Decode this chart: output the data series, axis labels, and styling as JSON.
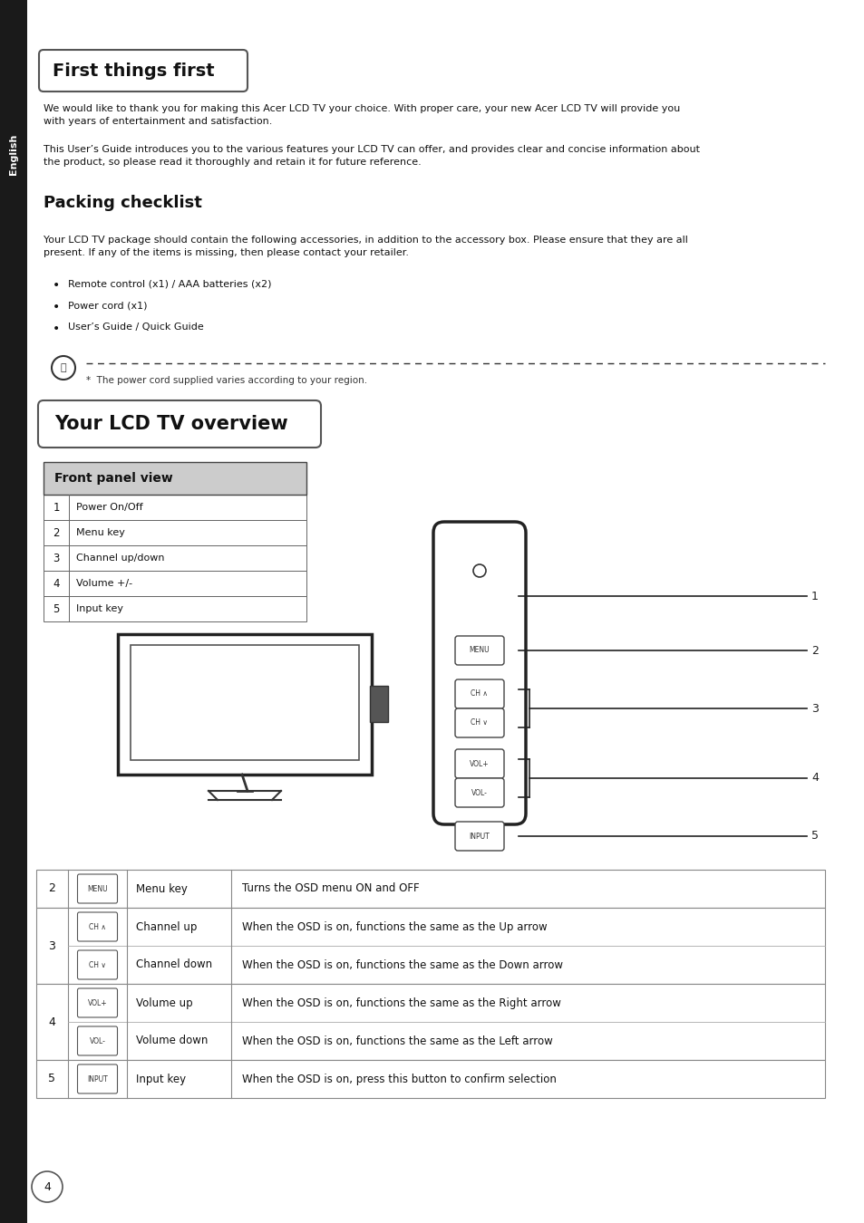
{
  "bg_color": "#ffffff",
  "page_num": "4",
  "sidebar_color": "#1a1a1a",
  "sidebar_text": "English",
  "section1_title": "First things first",
  "intro_text1": "We would like to thank you for making this Acer LCD TV your choice. With proper care, your new Acer LCD TV will provide you\nwith years of entertainment and satisfaction.",
  "intro_text2": "This User’s Guide introduces you to the various features your LCD TV can offer, and provides clear and concise information about\nthe product, so please read it thoroughly and retain it for future reference.",
  "section2_title": "Packing checklist",
  "checklist_intro": "Your LCD TV package should contain the following accessories, in addition to the accessory box. Please ensure that they are all\npresent. If any of the items is missing, then please contact your retailer.",
  "checklist_items": [
    "Remote control (x1) / AAA batteries (x2)",
    "Power cord (x1)",
    "User’s Guide / Quick Guide"
  ],
  "note_text": "*  The power cord supplied varies according to your region.",
  "section3_title": "Your LCD TV overview",
  "front_panel_title": "Front panel view",
  "front_panel_rows": [
    [
      "1",
      "Power On/Off"
    ],
    [
      "2",
      "Menu key"
    ],
    [
      "3",
      "Channel up/down"
    ],
    [
      "4",
      "Volume +/-"
    ],
    [
      "5",
      "Input key"
    ]
  ],
  "detail_rows": [
    {
      "num": "2",
      "icon": "MENU",
      "key": "Menu key",
      "desc": "Turns the OSD menu ON and OFF",
      "span": 1
    },
    {
      "num": "3",
      "icon": "CH ∧",
      "key": "Channel up",
      "desc": "When the OSD is on, functions the same as the Up arrow",
      "span": 2
    },
    {
      "num": "3",
      "icon": "CH ∨",
      "key": "Channel down",
      "desc": "When the OSD is on, functions the same as the Down arrow",
      "span": 0
    },
    {
      "num": "4",
      "icon": "VOL+",
      "key": "Volume up",
      "desc": "When the OSD is on, functions the same as the Right arrow",
      "span": 2
    },
    {
      "num": "4",
      "icon": "VOL-",
      "key": "Volume down",
      "desc": "When the OSD is on, functions the same as the Left arrow",
      "span": 0
    },
    {
      "num": "5",
      "icon": "INPUT",
      "key": "Input key",
      "desc": "When the OSD is on, press this button to confirm selection",
      "span": 1
    }
  ]
}
